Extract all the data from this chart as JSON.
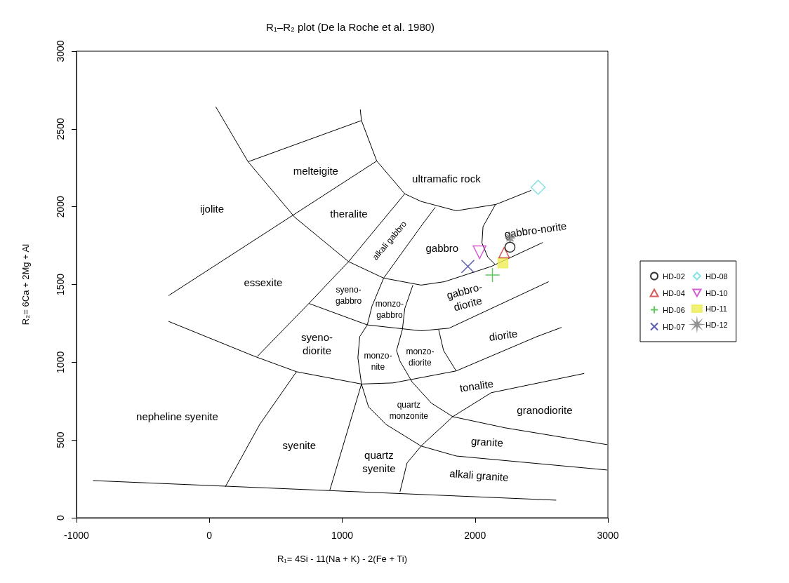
{
  "chart_data": {
    "type": "scatter",
    "title": "R₁–R₂ plot (De la Roche et al. 1980)",
    "xlabel": "R₁= 4Si - 11(Na + K) - 2(Fe + Ti)",
    "ylabel": "R₂= 6Ca + 2Mg + Al",
    "xlim": [
      -1000,
      3000
    ],
    "xticks": [
      -1000,
      0,
      1000,
      2000,
      3000
    ],
    "ylim": [
      0,
      3000
    ],
    "yticks": [
      0,
      500,
      1000,
      1500,
      2000,
      2500,
      3000
    ],
    "legend": "right",
    "series": [
      {
        "name": "HD-02",
        "color": "#000000",
        "marker": "circle",
        "x": [
          2263
        ],
        "values": [
          1740
        ]
      },
      {
        "name": "HD-04",
        "color": "#cc3333",
        "marker": "triangle",
        "x": [
          2219
        ],
        "values": [
          1705
        ]
      },
      {
        "name": "HD-06",
        "color": "#33bb33",
        "marker": "cross",
        "x": [
          2131
        ],
        "values": [
          1561
        ]
      },
      {
        "name": "HD-07",
        "color": "#333399",
        "marker": "x",
        "x": [
          1946
        ],
        "values": [
          1616
        ]
      },
      {
        "name": "HD-08",
        "color": "#66dddd",
        "marker": "diamond",
        "x": [
          2475
        ],
        "values": [
          2125
        ]
      },
      {
        "name": "HD-10",
        "color": "#cc33cc",
        "marker": "triangle-down",
        "x": [
          2034
        ],
        "values": [
          1707
        ]
      },
      {
        "name": "HD-11",
        "color": "#eeee55",
        "marker": "square",
        "x": [
          2210
        ],
        "values": [
          1639
        ]
      },
      {
        "name": "HD-12",
        "color": "#777777",
        "marker": "star",
        "x": [
          2263
        ],
        "values": [
          1800
        ]
      },
      {
        "type": "line",
        "color": "#000000",
        "marker": "none",
        "line_style": "solid",
        "x": [
          -876,
          2611
        ],
        "values": [
          239,
          113
        ]
      },
      {
        "type": "line",
        "color": "#000000",
        "marker": "none",
        "line_style": "solid",
        "x": [
          48,
          291,
          643,
          1048,
          1312,
          1594,
          1770,
          2122,
          2510
        ],
        "values": [
          2643,
          2290,
          1932,
          1647,
          1541,
          1496,
          1518,
          1616,
          1770
        ]
      },
      {
        "type": "line",
        "color": "#000000",
        "marker": "none",
        "line_style": "solid",
        "x": [
          294,
          1145
        ],
        "values": [
          2290,
          2554
        ]
      },
      {
        "type": "line",
        "color": "#000000",
        "marker": "none",
        "line_style": "solid",
        "x": [
          1136,
          1145,
          1260,
          1471,
          1594,
          1858,
          2158,
          2422
        ],
        "values": [
          2625,
          2554,
          2294,
          2083,
          2034,
          1974,
          2015,
          2105
        ]
      },
      {
        "type": "line",
        "color": "#000000",
        "marker": "none",
        "line_style": "solid",
        "x": [
          -308,
          1260
        ],
        "values": [
          1428,
          2294
        ]
      },
      {
        "type": "line",
        "color": "#000000",
        "marker": "none",
        "line_style": "solid",
        "x": [
          1471,
          1048,
          749,
          361
        ],
        "values": [
          2083,
          1647,
          1378,
          1037
        ]
      },
      {
        "type": "line",
        "color": "#000000",
        "marker": "none",
        "line_style": "solid",
        "x": [
          1700,
          1594,
          1312,
          1224,
          1189,
          1132,
          1118,
          1145,
          1198,
          1330,
          1594,
          1858,
          2994
        ],
        "values": [
          1996,
          1875,
          1541,
          1360,
          1240,
          1165,
          1029,
          860,
          713,
          600,
          461,
          397,
          307
        ]
      },
      {
        "type": "line",
        "color": "#000000",
        "marker": "none",
        "line_style": "solid",
        "x": [
          749,
          1189,
          1594,
          1805,
          2349,
          2554
        ],
        "values": [
          1378,
          1240,
          1202,
          1219,
          1436,
          1518
        ]
      },
      {
        "type": "line",
        "color": "#000000",
        "marker": "none",
        "line_style": "solid",
        "x": [
          1532,
          1471,
          1453,
          1409,
          1435,
          1528,
          1673,
          1832,
          2228,
          2994
        ],
        "values": [
          1496,
          1345,
          1210,
          1075,
          1007,
          871,
          736,
          650,
          578,
          470
        ]
      },
      {
        "type": "line",
        "color": "#000000",
        "marker": "none",
        "line_style": "solid",
        "x": [
          -308,
          343,
          656,
          1145,
          1383,
          1858,
          2466,
          2651
        ],
        "values": [
          1263,
          1037,
          939,
          860,
          867,
          944,
          1165,
          1224
        ]
      },
      {
        "type": "line",
        "color": "#000000",
        "marker": "none",
        "line_style": "solid",
        "x": [
          120,
          379,
          656
        ],
        "values": [
          199,
          600,
          939
        ]
      },
      {
        "type": "line",
        "color": "#000000",
        "marker": "none",
        "line_style": "solid",
        "x": [
          907,
          1145
        ],
        "values": [
          178,
          860
        ]
      },
      {
        "type": "line",
        "color": "#000000",
        "marker": "none",
        "line_style": "solid",
        "x": [
          1435,
          1488,
          1594,
          1832,
          2122,
          2822
        ],
        "values": [
          167,
          352,
          461,
          650,
          804,
          928
        ]
      },
      {
        "type": "line",
        "color": "#000000",
        "marker": "none",
        "line_style": "solid",
        "x": [
          1726,
          1763,
          1858
        ],
        "values": [
          1210,
          1075,
          944
        ]
      },
      {
        "type": "line",
        "color": "#000000",
        "marker": "none",
        "line_style": "solid",
        "x": [
          2154,
          2060,
          2052,
          2096,
          2149
        ],
        "values": [
          2015,
          1872,
          1767,
          1676,
          1631
        ]
      }
    ],
    "annotations": [
      "melteigite",
      "ultramafic rock",
      "ijolite",
      "theralite",
      "alkali gabbro",
      "gabbro",
      "gabbro-norite",
      "essexite",
      "syeno-\ngabbro",
      "monzo-\ngabbro",
      "gabbro-\ndiorite",
      "syeno-\ndiorite",
      "monzo-\nnite",
      "monzo-\ndiorite",
      "diorite",
      "tonalite",
      "quartz\nmonzonite",
      "granodiorite",
      "nepheline syenite",
      "syenite",
      "quartz\nsyenite",
      "granite",
      "alkali granite"
    ]
  }
}
